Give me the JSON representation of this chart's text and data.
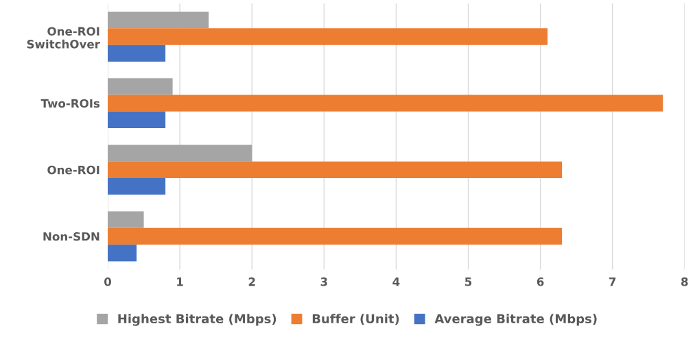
{
  "chart_data": {
    "type": "bar",
    "orientation": "horizontal",
    "categories": [
      "One-ROI\nSwitchOver",
      "Two-ROIs",
      "One-ROI",
      "Non-SDN"
    ],
    "series": [
      {
        "name": "Highest Bitrate (Mbps)",
        "color": "#a5a5a5",
        "values": [
          1.4,
          0.9,
          2.0,
          0.5
        ]
      },
      {
        "name": "Buffer (Unit)",
        "color": "#ed7d31",
        "values": [
          6.1,
          7.7,
          6.3,
          6.3
        ]
      },
      {
        "name": "Average Bitrate (Mbps)",
        "color": "#4472c4",
        "values": [
          0.8,
          0.8,
          0.8,
          0.4
        ]
      }
    ],
    "xlim": [
      0,
      8
    ],
    "xticks": [
      0,
      1,
      2,
      3,
      4,
      5,
      6,
      7,
      8
    ],
    "grid": "x",
    "legend": "bottom"
  }
}
